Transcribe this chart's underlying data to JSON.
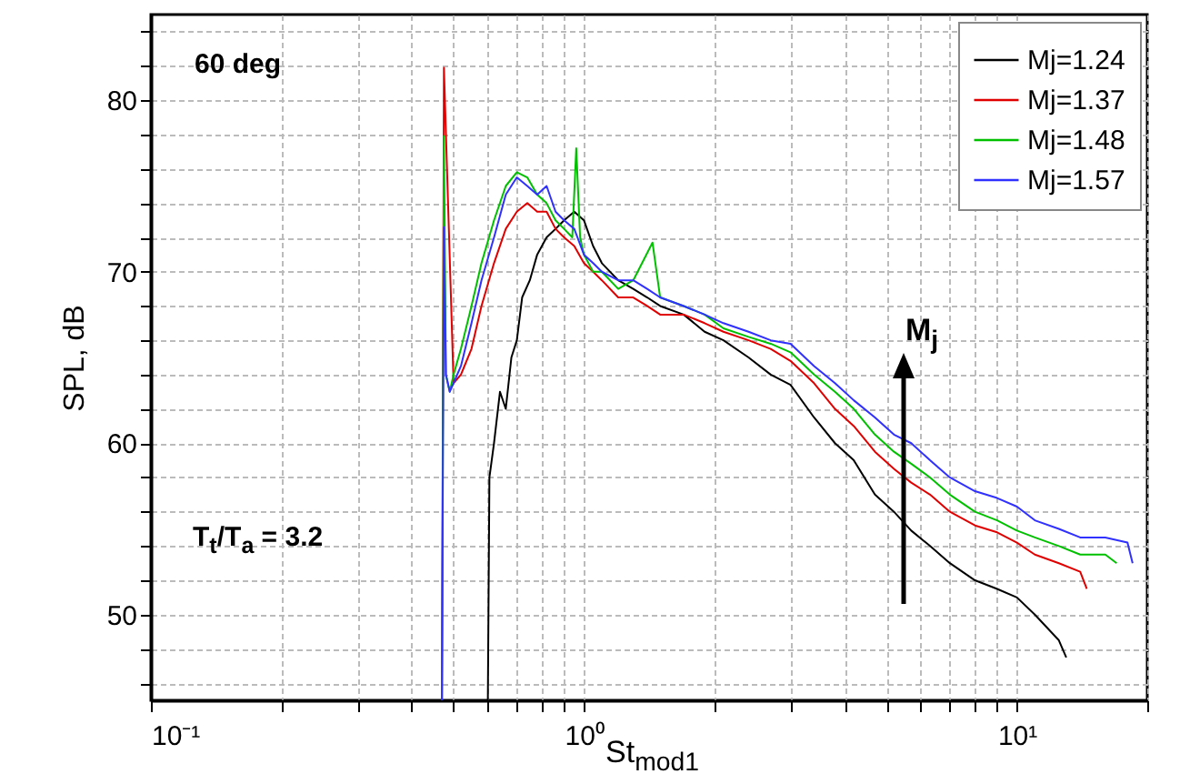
{
  "chart_data": {
    "type": "line",
    "xlabel": "St$_{mod1}$",
    "ylabel": "SPL, dB",
    "log": "x",
    "grid": true,
    "legend": "top right",
    "marker": "none",
    "line_style": "solid",
    "annotations": [
      "60 deg",
      "T$_{t}$/T$_{a}$ = 3.2",
      "M$_{j}$"
    ],
    "xlim": [
      0.1,
      20
    ],
    "ylim": [
      45,
      85
    ],
    "xticks": [
      {
        "value": 0.1,
        "label": "10⁻¹"
      },
      {
        "value": 0.2,
        "label": null
      },
      {
        "value": 0.3,
        "label": null
      },
      {
        "value": 0.4,
        "label": null
      },
      {
        "value": 0.5,
        "label": null
      },
      {
        "value": 0.6,
        "label": null
      },
      {
        "value": 0.7,
        "label": null
      },
      {
        "value": 0.8,
        "label": null
      },
      {
        "value": 0.9,
        "label": null
      },
      {
        "value": 1,
        "label": "10⁰"
      },
      {
        "value": 2,
        "label": null
      },
      {
        "value": 3,
        "label": null
      },
      {
        "value": 4,
        "label": null
      },
      {
        "value": 5,
        "label": null
      },
      {
        "value": 6,
        "label": null
      },
      {
        "value": 7,
        "label": null
      },
      {
        "value": 8,
        "label": null
      },
      {
        "value": 9,
        "label": null
      },
      {
        "value": 10,
        "label": "10¹"
      },
      {
        "value": 20,
        "label": null
      }
    ],
    "yticks": [
      {
        "value": 46,
        "label": null
      },
      {
        "value": 48,
        "label": null
      },
      50,
      {
        "value": 52,
        "label": null
      },
      {
        "value": 54,
        "label": null
      },
      {
        "value": 56,
        "label": null
      },
      {
        "value": 58,
        "label": null
      },
      60,
      {
        "value": 62,
        "label": null
      },
      {
        "value": 64,
        "label": null
      },
      {
        "value": 66,
        "label": null
      },
      {
        "value": 68,
        "label": null
      },
      70,
      {
        "value": 72,
        "label": null
      },
      {
        "value": 74,
        "label": null
      },
      {
        "value": 76,
        "label": null
      },
      {
        "value": 78,
        "label": null
      },
      80,
      {
        "value": 82,
        "label": null
      },
      {
        "value": 84,
        "label": null
      }
    ],
    "series": [
      {
        "name": "Mj=1.24",
        "color": "#000000",
        "x": [
          0.6,
          0.605,
          0.62,
          0.64,
          0.66,
          0.68,
          0.7,
          0.72,
          0.75,
          0.78,
          0.82,
          0.86,
          0.9,
          0.95,
          1.0,
          1.05,
          1.1,
          1.2,
          1.3,
          1.4,
          1.5,
          1.7,
          1.9,
          2.1,
          2.4,
          2.7,
          3.0,
          3.4,
          3.8,
          4.2,
          4.7,
          5.2,
          5.7,
          6.3,
          7,
          8,
          9,
          10,
          11,
          12.5,
          13
        ],
        "values": [
          45,
          58,
          60,
          63,
          62,
          65,
          66,
          68.5,
          69.5,
          71,
          72,
          72.5,
          73,
          73.5,
          73,
          71.5,
          70.5,
          69.5,
          69,
          68.5,
          68,
          67.5,
          66.5,
          66,
          65,
          64,
          63.4,
          61.5,
          60,
          59,
          57,
          56,
          54.9,
          54,
          53,
          52,
          51.5,
          51,
          50,
          48.5,
          47.5
        ]
      },
      {
        "name": "Mj=1.37",
        "color": "#e00000",
        "x": [
          0.47,
          0.475,
          0.5,
          0.52,
          0.55,
          0.58,
          0.62,
          0.66,
          0.7,
          0.74,
          0.78,
          0.82,
          0.86,
          0.9,
          0.95,
          1.0,
          1.05,
          1.1,
          1.2,
          1.3,
          1.4,
          1.5,
          1.7,
          1.9,
          2.1,
          2.4,
          2.7,
          3.0,
          3.4,
          3.8,
          4.2,
          4.7,
          5.2,
          5.7,
          6.3,
          7,
          8,
          9,
          10,
          11,
          12.5,
          14,
          14.5
        ],
        "values": [
          45,
          81.9,
          63.5,
          64,
          65.5,
          68,
          70.5,
          72.5,
          73.5,
          74,
          73.5,
          73.5,
          72.5,
          72,
          71.5,
          70.5,
          70,
          69.5,
          68.5,
          68.5,
          68,
          67.5,
          67.5,
          67,
          66.5,
          66,
          65.5,
          64.8,
          63.5,
          62,
          61,
          59.5,
          58.5,
          57.7,
          57,
          56,
          55.2,
          54.8,
          54.2,
          53.5,
          53,
          52.5,
          51.5
        ]
      },
      {
        "name": "Mj=1.48",
        "color": "#00c000",
        "x": [
          0.47,
          0.475,
          0.48,
          0.49,
          0.5,
          0.52,
          0.55,
          0.58,
          0.62,
          0.66,
          0.7,
          0.74,
          0.78,
          0.82,
          0.86,
          0.9,
          0.94,
          0.96,
          0.98,
          1.0,
          1.05,
          1.1,
          1.2,
          1.3,
          1.44,
          1.5,
          1.7,
          1.9,
          2.1,
          2.4,
          2.7,
          3.0,
          3.4,
          3.8,
          4.2,
          4.7,
          5.2,
          5.7,
          6.3,
          7,
          8,
          9,
          10,
          11,
          12.5,
          14,
          16,
          17
        ],
        "values": [
          45,
          77.9,
          64,
          63,
          64,
          65.5,
          68,
          70.5,
          73,
          75,
          75.8,
          75.5,
          74.5,
          74,
          73,
          72.5,
          72,
          77.2,
          72,
          71,
          70,
          70,
          69,
          69.5,
          71.7,
          68.5,
          68,
          67.5,
          66.7,
          66.2,
          65.8,
          65.3,
          64,
          63,
          62,
          60.5,
          59.5,
          58.8,
          58,
          57,
          56,
          55.5,
          54.9,
          54.5,
          54,
          53.5,
          53.5,
          53
        ]
      },
      {
        "name": "Mj=1.57",
        "color": "#3030ff",
        "x": [
          0.47,
          0.475,
          0.48,
          0.49,
          0.5,
          0.52,
          0.55,
          0.58,
          0.62,
          0.66,
          0.7,
          0.74,
          0.78,
          0.82,
          0.86,
          0.9,
          0.95,
          1.0,
          1.05,
          1.1,
          1.2,
          1.3,
          1.4,
          1.5,
          1.7,
          1.9,
          2.1,
          2.4,
          2.7,
          3.0,
          3.4,
          3.8,
          4.2,
          4.7,
          5.2,
          5.7,
          6.3,
          7,
          8,
          9,
          10,
          11,
          12.5,
          14,
          16,
          18,
          18.5
        ],
        "values": [
          45,
          72.6,
          64,
          63,
          63.5,
          64.5,
          67,
          69.5,
          72,
          74.5,
          75.5,
          75,
          74.5,
          75,
          73.5,
          73,
          72.5,
          71,
          70.5,
          70,
          69.5,
          69.5,
          69,
          68.5,
          68,
          67.5,
          67,
          66.5,
          66,
          65.8,
          64.5,
          63.5,
          62.5,
          61.5,
          60.5,
          60,
          59,
          58,
          57.2,
          56.8,
          56.3,
          55.5,
          55,
          54.5,
          54.5,
          54.2,
          53
        ]
      }
    ]
  }
}
